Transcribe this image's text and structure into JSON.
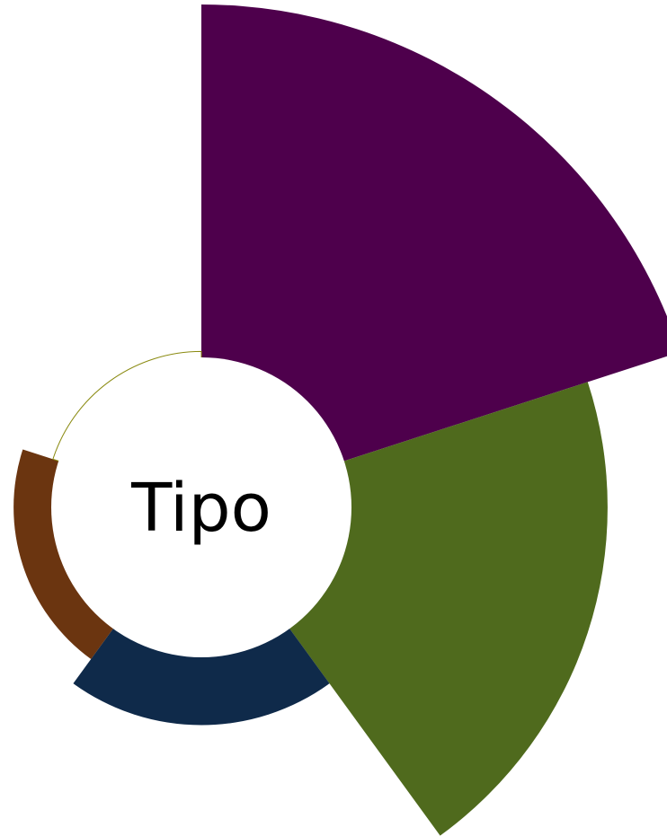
{
  "chart_data": {
    "type": "polar-area",
    "center_label": "Tipo",
    "start_angle_deg": 0,
    "direction": "clockwise",
    "slices": [
      {
        "start_deg": 0,
        "end_deg": 72,
        "radius_frac": 1.0,
        "color": "#4e004c"
      },
      {
        "start_deg": 72,
        "end_deg": 144,
        "radius_frac": 0.807,
        "color": "#4f6a1d"
      },
      {
        "start_deg": 144,
        "end_deg": 216,
        "radius_frac": 0.433,
        "color": "#0f2a4a"
      },
      {
        "start_deg": 216,
        "end_deg": 288,
        "radius_frac": 0.373,
        "color": "#6b3510"
      },
      {
        "start_deg": 288,
        "end_deg": 360,
        "radius_frac": 0.31,
        "color": "#8a8a10",
        "outline_only": true
      }
    ]
  }
}
